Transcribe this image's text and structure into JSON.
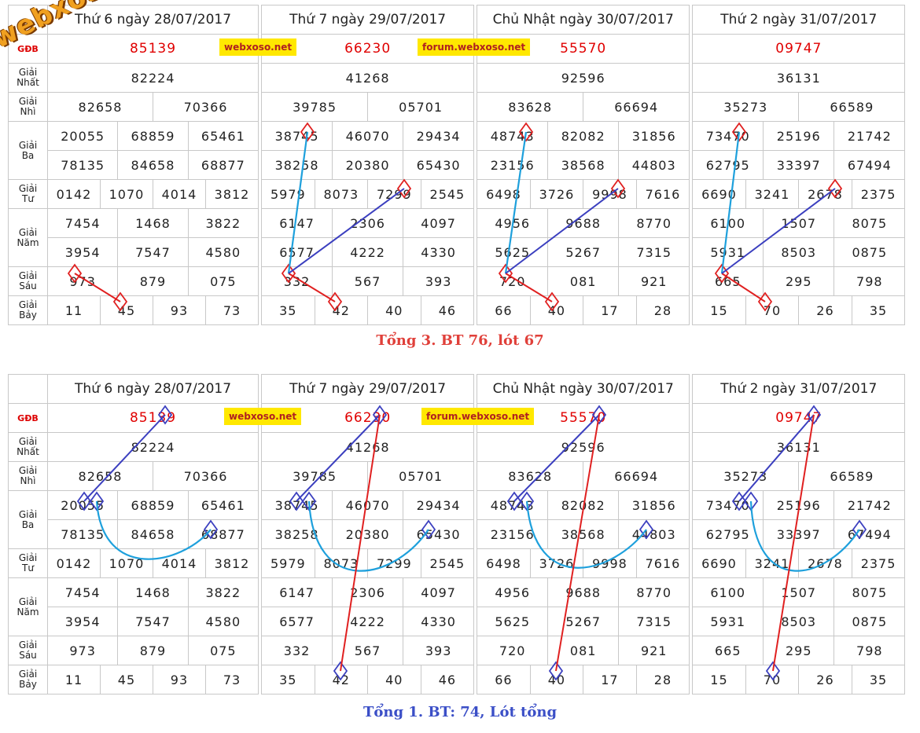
{
  "tables": [
    {
      "days": [
        {
          "title": "Thứ 6 ngày 28/07/2017",
          "gdb": "85139",
          "nhat": "82224",
          "nhi": [
            "82658",
            "70366"
          ],
          "ba": [
            "20055",
            "68859",
            "65461",
            "78135",
            "84658",
            "68877"
          ],
          "tu": [
            "0142",
            "1070",
            "4014",
            "3812"
          ],
          "nam": [
            "7454",
            "1468",
            "3822",
            "3954",
            "7547",
            "4580"
          ],
          "sau": [
            "973",
            "879",
            "075"
          ],
          "bay": [
            "11",
            "45",
            "93",
            "73"
          ]
        },
        {
          "title": "Thứ 7 ngày 29/07/2017",
          "gdb": "66230",
          "nhat": "41268",
          "nhi": [
            "39785",
            "05701"
          ],
          "ba": [
            "38745",
            "46070",
            "29434",
            "38258",
            "20380",
            "65430"
          ],
          "tu": [
            "5979",
            "8073",
            "7299",
            "2545"
          ],
          "nam": [
            "6147",
            "2306",
            "4097",
            "6577",
            "4222",
            "4330"
          ],
          "sau": [
            "332",
            "567",
            "393"
          ],
          "bay": [
            "35",
            "42",
            "40",
            "46"
          ]
        },
        {
          "title": "Chủ Nhật ngày 30/07/2017",
          "gdb": "55570",
          "nhat": "92596",
          "nhi": [
            "83628",
            "66694"
          ],
          "ba": [
            "48743",
            "82082",
            "31856",
            "23156",
            "38568",
            "44803"
          ],
          "tu": [
            "6498",
            "3726",
            "9998",
            "7616"
          ],
          "nam": [
            "4956",
            "9688",
            "8770",
            "5625",
            "5267",
            "7315"
          ],
          "sau": [
            "720",
            "081",
            "921"
          ],
          "bay": [
            "66",
            "40",
            "17",
            "28"
          ]
        },
        {
          "title": "Thứ 2 ngày 31/07/2017",
          "gdb": "09747",
          "nhat": "36131",
          "nhi": [
            "35273",
            "66589"
          ],
          "ba": [
            "73470",
            "25196",
            "21742",
            "62795",
            "33397",
            "67494"
          ],
          "tu": [
            "6690",
            "3241",
            "2678",
            "2375"
          ],
          "nam": [
            "6100",
            "1507",
            "8075",
            "5931",
            "8503",
            "0875"
          ],
          "sau": [
            "665",
            "295",
            "798"
          ],
          "bay": [
            "15",
            "70",
            "26",
            "35"
          ]
        }
      ]
    }
  ],
  "labels": {
    "gdb": "GĐB",
    "nhat": [
      "Giải",
      "Nhất"
    ],
    "nhi": [
      "Giải",
      "Nhì"
    ],
    "ba": [
      "Giải",
      "Ba"
    ],
    "tu": [
      "Giải",
      "Tư"
    ],
    "nam": [
      "Giải",
      "Năm"
    ],
    "sau": [
      "Giải",
      "Sáu"
    ],
    "bay": [
      "Giải",
      "Bảy"
    ]
  },
  "banners": {
    "left": "webxoso.net",
    "right": "forum.webxoso.net"
  },
  "logo": "webxoso.net",
  "captions": {
    "top": "Tổng 3. BT 76, lót 67",
    "bottom": "Tổng 1. BT: 74, Lót tổng"
  },
  "colors": {
    "red": "#e00000",
    "blue_line": "#3b3fbf",
    "cyan_line": "#1ea0dc",
    "red_line": "#e02020",
    "banner": "#ffe800"
  }
}
